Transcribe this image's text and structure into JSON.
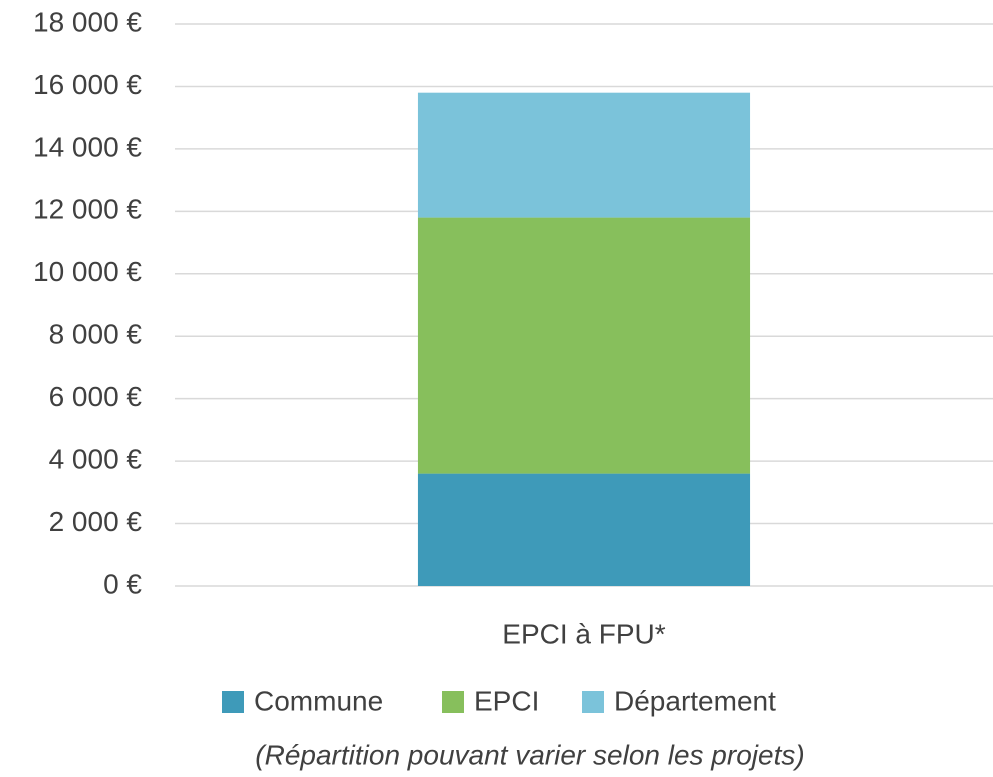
{
  "chart_data": {
    "type": "stacked_bar",
    "categories": [
      "EPCI à FPU*"
    ],
    "series": [
      {
        "name": "Commune",
        "color": "#3e9ab9",
        "values": [
          3600
        ]
      },
      {
        "name": "EPCI",
        "color": "#87bf5c",
        "values": [
          8200
        ]
      },
      {
        "name": "Département",
        "color": "#7bc3da",
        "values": [
          4000
        ]
      }
    ],
    "ylim": [
      0,
      18000
    ],
    "yticks": [
      {
        "value": 0,
        "label": "0 €"
      },
      {
        "value": 2000,
        "label": "2 000 €"
      },
      {
        "value": 4000,
        "label": "4 000 €"
      },
      {
        "value": 6000,
        "label": "6 000 €"
      },
      {
        "value": 8000,
        "label": "8 000 €"
      },
      {
        "value": 10000,
        "label": "10 000 €"
      },
      {
        "value": 12000,
        "label": "12 000 €"
      },
      {
        "value": 14000,
        "label": "14 000 €"
      },
      {
        "value": 16000,
        "label": "16 000 €"
      },
      {
        "value": 18000,
        "label": "18 000 €"
      }
    ],
    "grid": true,
    "legend": "bottom",
    "annotation": "(Répartition pouvant varier selon les projets)"
  }
}
